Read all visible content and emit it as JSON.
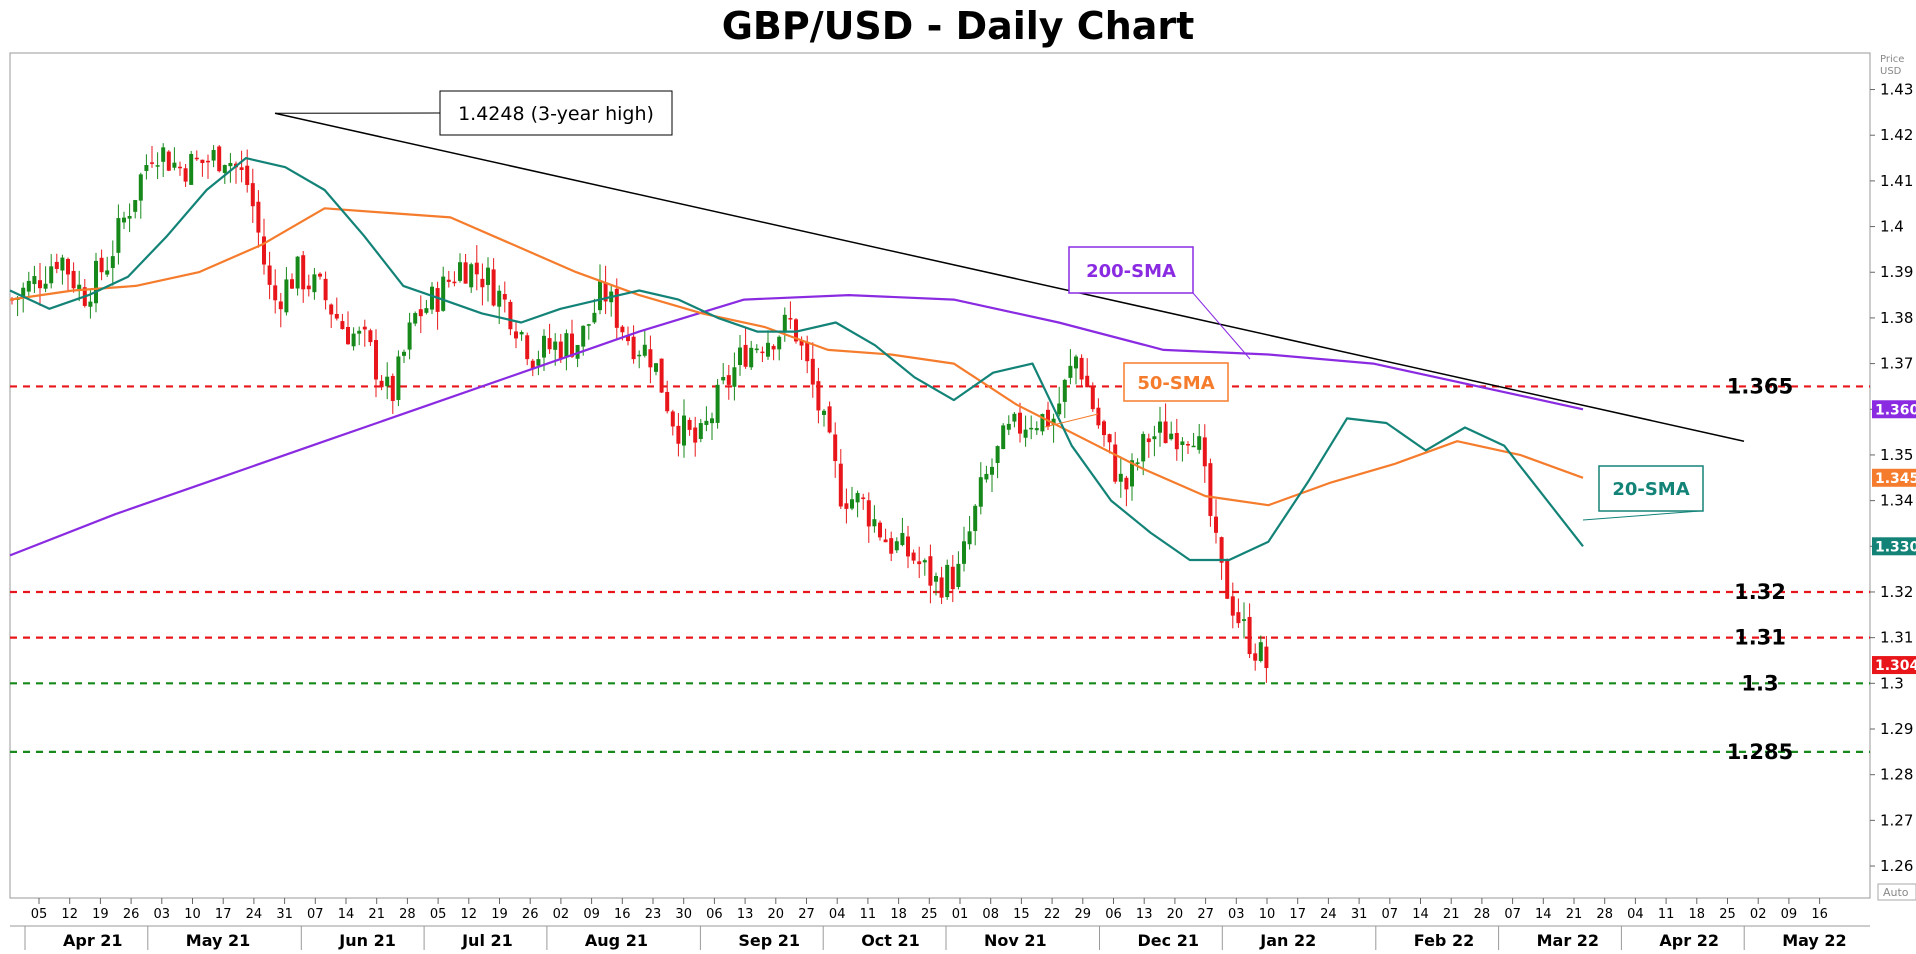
{
  "title": "GBP/USD - Daily Chart",
  "chart_data": {
    "type": "candlestick",
    "axis": {
      "unit_label_1": "Price",
      "unit_label_2": "USD",
      "auto_label": "Auto",
      "ylim": [
        1.253,
        1.438
      ]
    },
    "y_ticks": [
      "1.43",
      "1.42",
      "1.41",
      "1.4",
      "1.39",
      "1.38",
      "1.37",
      "1.36",
      "1.35",
      "1.34",
      "1.33",
      "1.32",
      "1.31",
      "1.3",
      "1.29",
      "1.28",
      "1.27",
      "1.26"
    ],
    "x_day_ticks": [
      "05",
      "12",
      "19",
      "26",
      "03",
      "10",
      "17",
      "24",
      "31",
      "07",
      "14",
      "21",
      "28",
      "05",
      "12",
      "19",
      "26",
      "02",
      "09",
      "16",
      "23",
      "30",
      "06",
      "13",
      "20",
      "27",
      "04",
      "11",
      "18",
      "25",
      "01",
      "08",
      "15",
      "22",
      "29",
      "06",
      "13",
      "20",
      "27",
      "03",
      "10",
      "17",
      "24",
      "31",
      "07",
      "14",
      "21",
      "28",
      "07",
      "14",
      "21",
      "28",
      "04",
      "11",
      "18",
      "25",
      "02",
      "09",
      "16"
    ],
    "x_month_labels": [
      "Apr 21",
      "May 21",
      "Jun 21",
      "Jul 21",
      "Aug 21",
      "Sep 21",
      "Oct 21",
      "Nov 21",
      "Dec 21",
      "Jan 22",
      "Feb 22",
      "Mar 22",
      "Apr 22",
      "May 22"
    ],
    "close_series_weekly": [
      1.384,
      1.388,
      1.394,
      1.385,
      1.392,
      1.405,
      1.418,
      1.413,
      1.414,
      1.416,
      1.409,
      1.383,
      1.39,
      1.386,
      1.378,
      1.374,
      1.362,
      1.38,
      1.385,
      1.392,
      1.389,
      1.382,
      1.372,
      1.374,
      1.375,
      1.386,
      1.376,
      1.372,
      1.357,
      1.352,
      1.364,
      1.373,
      1.376,
      1.379,
      1.362,
      1.342,
      1.339,
      1.331,
      1.328,
      1.322,
      1.324,
      1.343,
      1.354,
      1.358,
      1.358,
      1.372,
      1.355,
      1.342,
      1.354,
      1.355,
      1.356,
      1.325,
      1.312,
      1.304
    ],
    "sma_20": [
      1.386,
      1.382,
      1.385,
      1.389,
      1.398,
      1.408,
      1.415,
      1.413,
      1.408,
      1.398,
      1.387,
      1.384,
      1.381,
      1.379,
      1.382,
      1.384,
      1.386,
      1.384,
      1.38,
      1.377,
      1.377,
      1.379,
      1.374,
      1.367,
      1.362,
      1.368,
      1.37,
      1.352,
      1.34,
      1.333,
      1.327,
      1.327,
      1.331,
      1.344,
      1.358,
      1.357,
      1.351,
      1.356,
      1.352,
      1.341,
      1.33
    ],
    "sma_50": [
      1.384,
      1.386,
      1.387,
      1.39,
      1.396,
      1.404,
      1.403,
      1.402,
      1.396,
      1.39,
      1.385,
      1.381,
      1.378,
      1.373,
      1.372,
      1.37,
      1.361,
      1.354,
      1.347,
      1.341,
      1.339,
      1.344,
      1.348,
      1.353,
      1.35,
      1.345
    ],
    "sma_200": [
      1.328,
      1.337,
      1.345,
      1.353,
      1.361,
      1.369,
      1.377,
      1.384,
      1.385,
      1.384,
      1.379,
      1.373,
      1.372,
      1.37,
      1.365,
      1.36
    ],
    "trendline": {
      "from": 1.4248,
      "to": 1.353
    },
    "levels": [
      {
        "value": 1.365,
        "label": "1.365",
        "color": "#e8161a"
      },
      {
        "value": 1.32,
        "label": "1.32",
        "color": "#e8161a"
      },
      {
        "value": 1.31,
        "label": "1.31",
        "color": "#e8161a"
      },
      {
        "value": 1.3,
        "label": "1.3",
        "color": "#16891a"
      },
      {
        "value": 1.285,
        "label": "1.285",
        "color": "#16891a"
      }
    ],
    "price_tags": [
      {
        "text": "1.360",
        "value": 1.36,
        "bg": "#8a2be2"
      },
      {
        "text": "1.345",
        "value": 1.345,
        "bg": "#f57c2c"
      },
      {
        "text": "1.330",
        "value": 1.33,
        "bg": "#138378"
      },
      {
        "text": "1.304",
        "value": 1.304,
        "bg": "#e8161a"
      }
    ],
    "annotations": {
      "high": "1.4248 (3-year high)",
      "sma200": "200-SMA",
      "sma50": "50-SMA",
      "sma20": "20-SMA"
    },
    "colors": {
      "up": "#16891a",
      "down": "#e8161a",
      "sma20": "#138378",
      "sma50": "#f57c2c",
      "sma200": "#8a2be2"
    }
  }
}
